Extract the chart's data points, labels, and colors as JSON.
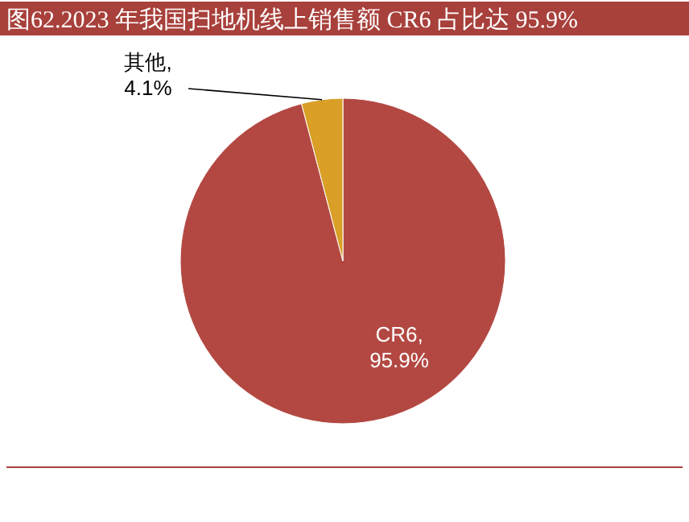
{
  "chart_data": {
    "type": "pie",
    "title": "图62.2023 年我国扫地机线上销售额 CR6 占比达 95.9%",
    "categories": [
      "CR6",
      "其他"
    ],
    "values": [
      95.9,
      4.1
    ],
    "colors": [
      "#b34842",
      "#d99f26"
    ],
    "value_labels": [
      ",\n95.9%",
      ",\n4.1%"
    ],
    "legend": false
  }
}
